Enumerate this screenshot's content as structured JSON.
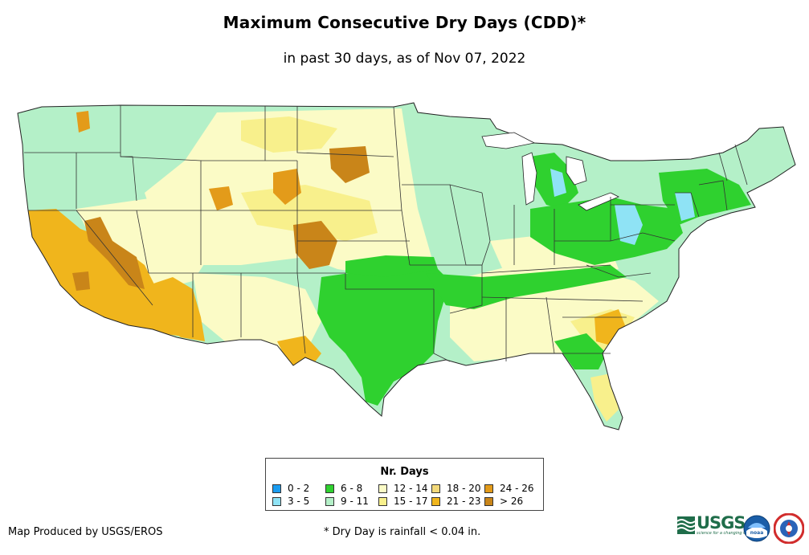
{
  "header": {
    "title": "Maximum Consecutive Dry Days (CDD)*",
    "subtitle": "in past 30 days, as of Nov 07, 2022"
  },
  "legend": {
    "title": "Nr. Days",
    "items": [
      {
        "label": "0 - 2",
        "color": "#1a9cf0"
      },
      {
        "label": "3 - 5",
        "color": "#8fe3f5"
      },
      {
        "label": "6 - 8",
        "color": "#2fd12f"
      },
      {
        "label": "9 - 11",
        "color": "#b4f0c8"
      },
      {
        "label": "12 - 14",
        "color": "#fbfbc6"
      },
      {
        "label": "15 - 17",
        "color": "#f8f08c"
      },
      {
        "label": "18 - 20",
        "color": "#f3d97a"
      },
      {
        "label": "21 - 23",
        "color": "#f0b51c"
      },
      {
        "label": "24 - 26",
        "color": "#e39b1a"
      },
      {
        "label": "> 26",
        "color": "#c98519"
      }
    ]
  },
  "footer": {
    "credit": "Map Produced by USGS/EROS",
    "footnote": "* Dry Day is rainfall < 0.04 in.",
    "logo_usgs": "USGS",
    "logo_usgs_tagline": "science for a changing world",
    "logo_noaa": "noaa"
  }
}
